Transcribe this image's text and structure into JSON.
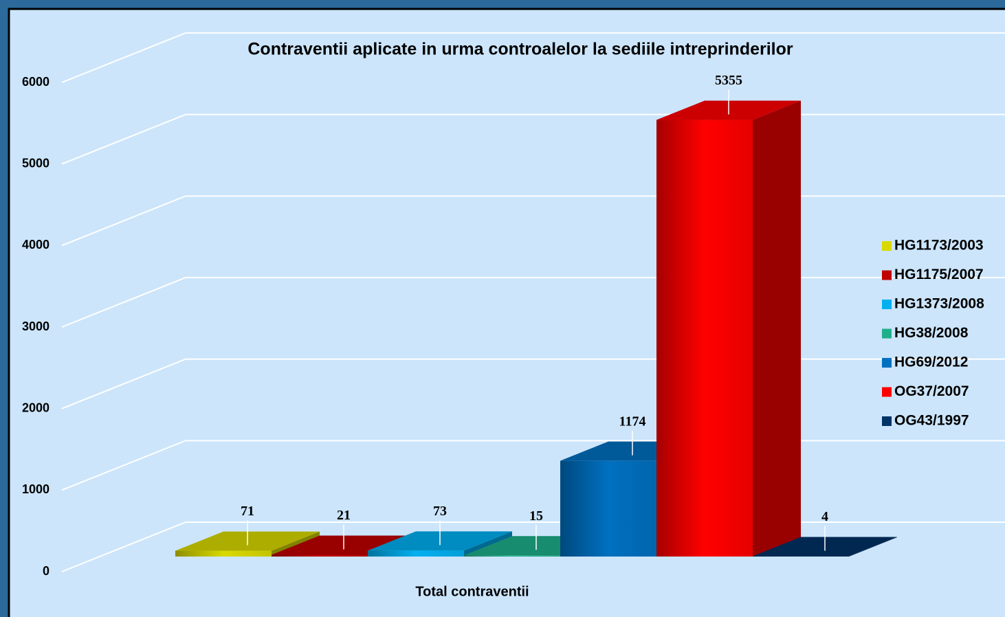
{
  "chart_data": {
    "type": "bar",
    "title": "Contraventii aplicate in urma controalelor la sediile intreprinderilor",
    "categories": [
      "Total contraventii"
    ],
    "series": [
      {
        "name": "HG1173/2003",
        "color": "#d9d900",
        "values": [
          71
        ]
      },
      {
        "name": "HG1175/2007",
        "color": "#c00000",
        "values": [
          21
        ]
      },
      {
        "name": "HG1373/2008",
        "color": "#00b0f0",
        "values": [
          73
        ]
      },
      {
        "name": "HG38/2008",
        "color": "#1fb08a",
        "values": [
          15
        ]
      },
      {
        "name": "HG69/2012",
        "color": "#0070c0",
        "values": [
          1174
        ]
      },
      {
        "name": "OG37/2007",
        "color": "#ff0000",
        "values": [
          5355
        ]
      },
      {
        "name": "OG43/1997",
        "color": "#003366",
        "values": [
          4
        ]
      }
    ],
    "ylim": [
      0,
      6000
    ],
    "yticks": [
      0,
      1000,
      2000,
      3000,
      4000,
      5000,
      6000
    ],
    "grid": true,
    "legend": "right"
  }
}
